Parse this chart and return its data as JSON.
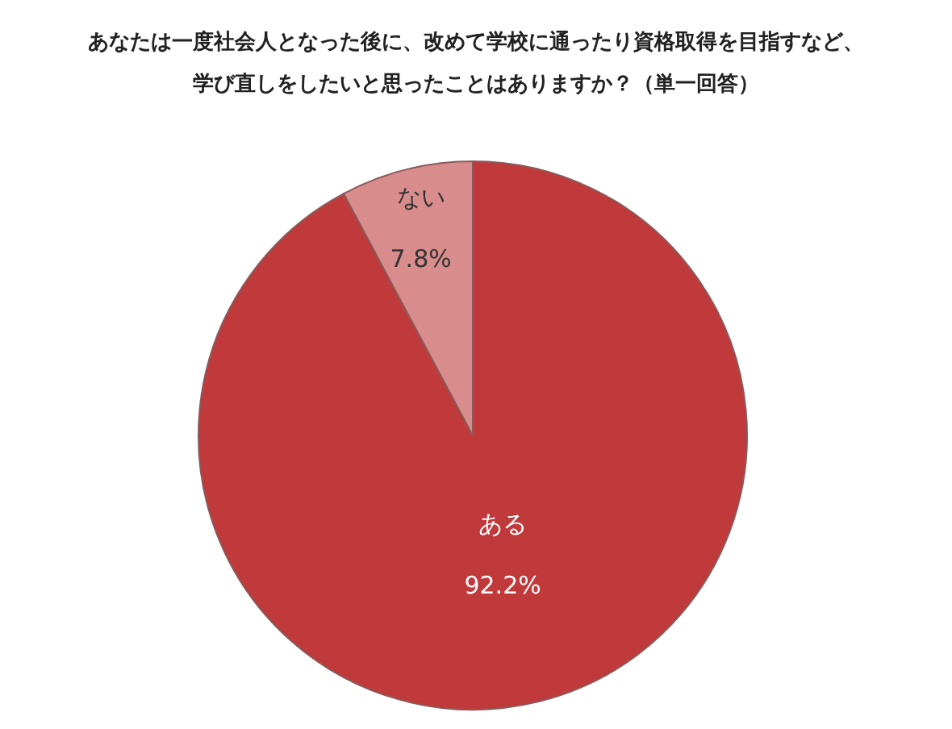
{
  "chart_data": {
    "type": "pie",
    "title": "あなたは一度社会人となった後に、改めて学校に通ったり資格取得を目指すなど、学び直しをしたいと思ったことはありますか？（単一回答）",
    "categories": [
      "ある",
      "ない"
    ],
    "values": [
      92.2,
      7.8
    ],
    "value_labels": [
      "92.2%",
      "7.8%"
    ],
    "colors": [
      "#c0393b",
      "#d98c8c"
    ]
  }
}
